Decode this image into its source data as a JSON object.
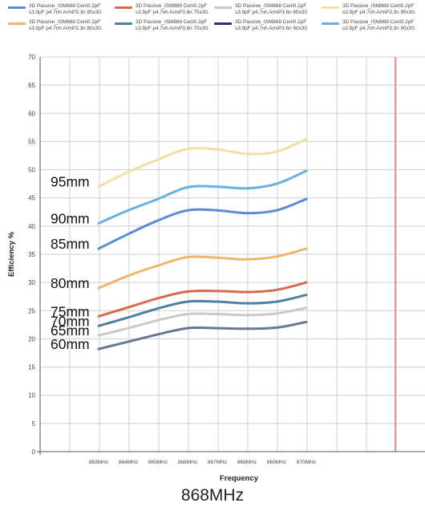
{
  "legend": [
    {
      "label": "3D Passive_ISM868 Cerii0.2pF\ns3.9pF p4.7nh ArmP3.3n 85x30.",
      "color": "#5b8ad6"
    },
    {
      "label": "3D Passive_ISM868 Cerii0.2pF\ns3.9pF p4.7nh ArmP3.6n 75x30.",
      "color": "#d9694a"
    },
    {
      "label": "3D Passive_ISM868 Cerii0.2pF\ns3.9pF p4.7nh ArmP3.6n 65x30.",
      "color": "#c8c8c8"
    },
    {
      "label": "3D Passive_ISM868 Cerii0.2pF\ns3.9pF p4.7nh ArmP3.3n 95x30.",
      "color": "#f3dfa0"
    },
    {
      "label": "3D Passive_ISM868 Cerii0.2pF\ns3.9pF p4.7nh ArmP3.3n 80x30.",
      "color": "#efb56a"
    },
    {
      "label": "3D Passive_ISM868 Cerii0.2pF\ns3.9pF p4.7nh ArmP3.6n 70x30.",
      "color": "#4f7fa3"
    },
    {
      "label": "3D Passive_ISM868 Cerii0.2pF\ns3.9pF p4.7nh ArmP3.6n 60x30.",
      "color": "#25365f"
    },
    {
      "label": "3D Passive_ISM868 Cerii0.2pF\ns3.9pF p4.7nh ArmP3.3n 90x30.",
      "color": "#6ab0e0"
    }
  ],
  "chart_data": {
    "type": "line",
    "xlabel": "Frequency",
    "ylabel": "Efficiency %",
    "ylim": [
      0,
      70
    ],
    "yticks": [
      0,
      5,
      10,
      15,
      20,
      25,
      30,
      35,
      40,
      45,
      50,
      55,
      60,
      65,
      70
    ],
    "categories": [
      "863MHz",
      "864MHz",
      "865MHz",
      "866MHz",
      "867MHz",
      "868MHz",
      "869MHz",
      "870MHz"
    ],
    "grid": true,
    "series": [
      {
        "name": "95mm",
        "color": "#f3dfa0",
        "values": [
          47.0,
          49.6,
          51.8,
          53.7,
          53.6,
          52.8,
          53.2,
          55.4
        ]
      },
      {
        "name": "90mm",
        "color": "#6ab0e0",
        "values": [
          40.5,
          42.8,
          44.8,
          46.9,
          47.0,
          46.7,
          47.5,
          49.8
        ]
      },
      {
        "name": "85mm",
        "color": "#5b8ad6",
        "values": [
          36.0,
          38.6,
          41.0,
          42.8,
          42.8,
          42.3,
          42.8,
          44.8
        ]
      },
      {
        "name": "80mm",
        "color": "#efb56a",
        "values": [
          29.0,
          31.2,
          33.0,
          34.5,
          34.4,
          34.1,
          34.6,
          36.0
        ]
      },
      {
        "name": "75mm",
        "color": "#d9694a",
        "values": [
          24.0,
          25.6,
          27.2,
          28.4,
          28.5,
          28.3,
          28.7,
          30.0
        ]
      },
      {
        "name": "70mm",
        "color": "#4f7fa3",
        "values": [
          22.3,
          23.8,
          25.4,
          26.6,
          26.6,
          26.3,
          26.6,
          27.8
        ]
      },
      {
        "name": "65mm",
        "color": "#c8c8c8",
        "values": [
          20.6,
          21.9,
          23.3,
          24.4,
          24.4,
          24.2,
          24.5,
          25.5
        ]
      },
      {
        "name": "60mm",
        "color": "#64779a",
        "values": [
          18.2,
          19.5,
          20.8,
          21.9,
          21.9,
          21.8,
          22.0,
          23.0
        ]
      }
    ],
    "annotations": [
      "95mm",
      "90mm",
      "85mm",
      "80mm",
      "75mm",
      "70mm",
      "65mm",
      "60mm"
    ]
  },
  "footer": "868MHz"
}
